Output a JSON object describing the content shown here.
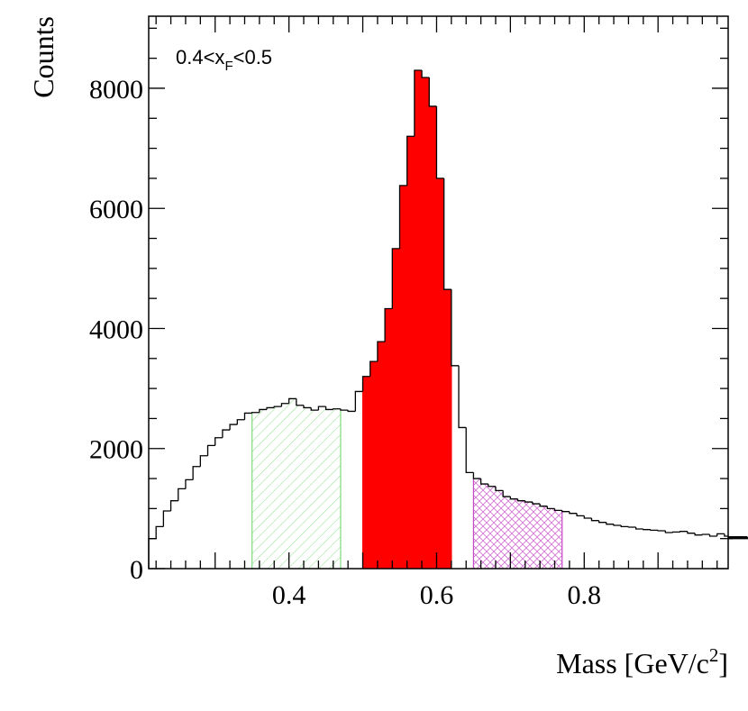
{
  "chart_data": {
    "type": "bar",
    "subtype": "histogram",
    "annotation": {
      "base": "0.4<x",
      "subscript": "F",
      "tail": "<0.5"
    },
    "xlabel": {
      "main": "Mass [GeV/c",
      "superscript": "2",
      "close": "]"
    },
    "ylabel": "Counts",
    "xlim": [
      0.21,
      0.995
    ],
    "ylim": [
      0,
      9200
    ],
    "bin_width": 0.01,
    "x_ticks": [
      {
        "value": 0.4,
        "label": "0.4"
      },
      {
        "value": 0.6,
        "label": "0.6"
      },
      {
        "value": 0.8,
        "label": "0.8"
      }
    ],
    "y_ticks": [
      {
        "value": 0,
        "label": "0"
      },
      {
        "value": 2000,
        "label": "2000"
      },
      {
        "value": 4000,
        "label": "4000"
      },
      {
        "value": 6000,
        "label": "6000"
      },
      {
        "value": 8000,
        "label": "8000"
      }
    ],
    "bin_edges_start": 0.21,
    "values": [
      500,
      700,
      960,
      1130,
      1330,
      1480,
      1700,
      1880,
      2050,
      2180,
      2310,
      2400,
      2480,
      2590,
      2600,
      2650,
      2680,
      2700,
      2750,
      2830,
      2720,
      2680,
      2640,
      2700,
      2650,
      2660,
      2640,
      2620,
      2950,
      3200,
      3450,
      3780,
      4330,
      5330,
      6380,
      7200,
      8300,
      8180,
      7700,
      6500,
      4650,
      3380,
      2350,
      1600,
      1500,
      1410,
      1370,
      1300,
      1200,
      1160,
      1130,
      1110,
      1080,
      1040,
      1000,
      970,
      950,
      920,
      880,
      840,
      800,
      770,
      740,
      720,
      700,
      690,
      660,
      650,
      640,
      630,
      600,
      610,
      620,
      590,
      560,
      570,
      540,
      580,
      540,
      500,
      520,
      530,
      510,
      520,
      500
    ],
    "regions": [
      {
        "name": "left-sideband",
        "range": [
          0.35,
          0.47
        ],
        "style": "diagonal-hatch",
        "color": "#7fd97f"
      },
      {
        "name": "signal",
        "range": [
          0.5,
          0.62
        ],
        "style": "solid",
        "color": "#ff0000"
      },
      {
        "name": "right-sideband",
        "range": [
          0.65,
          0.77
        ],
        "style": "cross-hatch",
        "color": "#cc44cc"
      }
    ]
  }
}
